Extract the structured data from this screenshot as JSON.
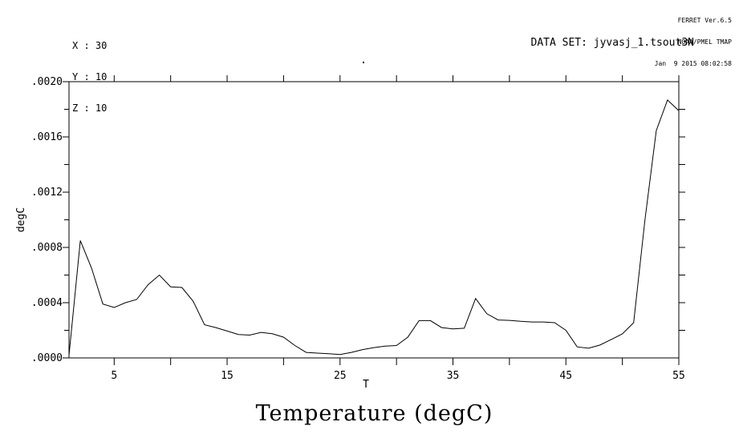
{
  "window": {
    "background": "#ffffff",
    "foreground": "#000000"
  },
  "stamp": {
    "version": "FERRET Ver.6.5",
    "org": "NOAA/PMEL TMAP",
    "timestamp": "Jan  9 2015 08:02:58"
  },
  "context": {
    "x": "X : 30",
    "y": "Y : 10",
    "z": "Z : 10"
  },
  "dataset_label": "DATA SET: jyvasj_1.tsout3N",
  "chart_data": {
    "type": "line",
    "title": "Temperature (degC)",
    "xlabel": "T",
    "ylabel": "degC",
    "xlim": [
      1,
      55
    ],
    "ylim": [
      0,
      0.002
    ],
    "grid": false,
    "legend": "none",
    "line_color": "#000000",
    "axis_color": "#000000",
    "x_ticks": [
      5,
      10,
      15,
      20,
      25,
      30,
      35,
      40,
      45,
      50,
      55
    ],
    "x_tick_labels": [
      {
        "v": 5,
        "t": "5"
      },
      {
        "v": 15,
        "t": "15"
      },
      {
        "v": 25,
        "t": "25"
      },
      {
        "v": 35,
        "t": "35"
      },
      {
        "v": 45,
        "t": "45"
      },
      {
        "v": 55,
        "t": "55"
      }
    ],
    "y_major_ticks": [
      {
        "v": 0.0,
        "t": ".0000"
      },
      {
        "v": 0.0004,
        "t": ".0004"
      },
      {
        "v": 0.0008,
        "t": ".0008"
      },
      {
        "v": 0.0012,
        "t": ".0012"
      },
      {
        "v": 0.0016,
        "t": ".0016"
      },
      {
        "v": 0.002,
        "t": ".0020"
      }
    ],
    "y_minor_ticks": [
      0.0002,
      0.0006,
      0.001,
      0.0014,
      0.0018
    ],
    "y_right_ticks": [
      0.0002,
      0.0004,
      0.0006,
      0.0008,
      0.001,
      0.0012,
      0.0014,
      0.0016,
      0.0018
    ],
    "x": [
      1,
      2,
      3,
      4,
      5,
      6,
      7,
      8,
      9,
      10,
      11,
      12,
      13,
      14,
      15,
      16,
      17,
      18,
      19,
      20,
      21,
      22,
      23,
      24,
      25,
      26,
      27,
      28,
      29,
      30,
      31,
      32,
      33,
      34,
      35,
      36,
      37,
      38,
      39,
      40,
      41,
      42,
      43,
      44,
      45,
      46,
      47,
      48,
      49,
      50,
      51,
      52,
      53,
      54,
      55
    ],
    "v": [
      2e-05,
      0.00085,
      0.00065,
      0.00039,
      0.000365,
      0.0004,
      0.000423,
      0.00053,
      0.0006,
      0.000515,
      0.00051,
      0.00041,
      0.00024,
      0.00022,
      0.000195,
      0.00017,
      0.000165,
      0.000185,
      0.000175,
      0.00015,
      9e-05,
      4e-05,
      3.5e-05,
      3e-05,
      2.5e-05,
      4e-05,
      6e-05,
      7.5e-05,
      8.5e-05,
      9e-05,
      0.00015,
      0.00027,
      0.00027,
      0.00022,
      0.00021,
      0.000215,
      0.00043,
      0.00032,
      0.000275,
      0.000272,
      0.000265,
      0.00026,
      0.00026,
      0.000255,
      0.0002,
      8e-05,
      7e-05,
      9.3e-05,
      0.000133,
      0.000174,
      0.000255,
      0.001,
      0.001646,
      0.001867,
      0.00179
    ]
  }
}
